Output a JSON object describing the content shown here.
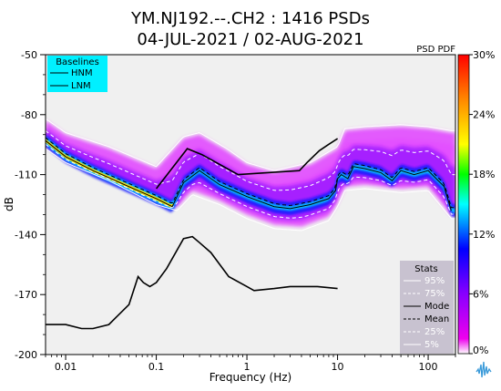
{
  "title_line1": "YM.NJ192.--.CH2 : 1416 PSDs",
  "title_line2": "04-JUL-2021 / 02-AUG-2021",
  "plot_type_label": "PSD PDF",
  "chart_data": {
    "type": "heatmap",
    "xlabel": "Frequency (Hz)",
    "ylabel": "dB",
    "x_scale": "log",
    "xlim": [
      0.006,
      200
    ],
    "ylim": [
      -200,
      -50
    ],
    "x_ticks": [
      0.01,
      0.1,
      1,
      10,
      100
    ],
    "x_tick_labels": [
      "0.01",
      "0.1",
      "1",
      "10",
      "100"
    ],
    "y_ticks": [
      -200,
      -170,
      -140,
      -110,
      -80,
      -50
    ],
    "y_tick_labels": [
      "-200",
      "-170",
      "-140",
      "-110",
      "-80",
      "-50"
    ],
    "colorbar": {
      "ticks": [
        0,
        6,
        12,
        18,
        24,
        30
      ],
      "tick_labels": [
        "0%",
        "6%",
        "12%",
        "18%",
        "24%",
        "30%"
      ],
      "range": [
        0,
        30
      ],
      "colors": [
        "#ffffff",
        "#ee00ee",
        "#8800ff",
        "#0000ff",
        "#00ffff",
        "#00ff00",
        "#ffff00",
        "#ff8800",
        "#ff0000"
      ]
    },
    "baselines": {
      "title": "Baselines",
      "entries": [
        "HNM",
        "LNM"
      ],
      "HNM": {
        "x": [
          0.1,
          0.22,
          0.32,
          0.8,
          3.8,
          4.6,
          6.3,
          7.9,
          10
        ],
        "y": [
          -117,
          -97,
          -100,
          -110,
          -108,
          -104,
          -98,
          -95,
          -92
        ]
      },
      "LNM": {
        "x": [
          0.006,
          0.01,
          0.015,
          0.02,
          0.03,
          0.05,
          0.063,
          0.072,
          0.085,
          0.1,
          0.13,
          0.2,
          0.25,
          0.3,
          0.4,
          0.63,
          1,
          1.2,
          2,
          3,
          5,
          6,
          10
        ],
        "y": [
          -185,
          -185,
          -187,
          -187,
          -185,
          -175,
          -161,
          -164,
          -166,
          -164,
          -157,
          -142,
          -141,
          -144,
          -149,
          -161,
          -166,
          -168,
          -167,
          -166,
          -166,
          -166,
          -167
        ]
      }
    },
    "stats": {
      "title": "Stats",
      "entries": [
        "95%",
        "75%",
        "Mode",
        "Mean",
        "25%",
        "5%"
      ]
    },
    "mode_curve": {
      "x": [
        0.006,
        0.01,
        0.02,
        0.05,
        0.1,
        0.15,
        0.2,
        0.3,
        0.5,
        1,
        2,
        3,
        5,
        8,
        9.5,
        10,
        11,
        13,
        15,
        20,
        30,
        40,
        50,
        70,
        100,
        150,
        180
      ],
      "y": [
        -93,
        -101,
        -108,
        -116,
        -122,
        -126,
        -114,
        -108,
        -115,
        -121,
        -126,
        -127,
        -125,
        -122,
        -118,
        -112,
        -110,
        -112,
        -106,
        -107,
        -109,
        -113,
        -108,
        -110,
        -108,
        -116,
        -128
      ]
    },
    "percentile_95": {
      "x": [
        0.006,
        0.01,
        0.03,
        0.1,
        0.2,
        0.3,
        0.6,
        1,
        2,
        5,
        10,
        12,
        20,
        50,
        100,
        180
      ],
      "y": [
        -82,
        -89,
        -96,
        -106,
        -91,
        -89,
        -97,
        -104,
        -108,
        -104,
        -96,
        -87,
        -86,
        -85,
        -86,
        -88
      ]
    },
    "percentile_5": {
      "x": [
        0.006,
        0.01,
        0.03,
        0.1,
        0.17,
        0.25,
        0.5,
        1,
        2,
        4,
        8,
        10,
        12,
        20,
        50,
        100,
        180
      ],
      "y": [
        -97,
        -104,
        -113,
        -125,
        -128,
        -120,
        -125,
        -132,
        -137,
        -138,
        -133,
        -126,
        -118,
        -117,
        -119,
        -118,
        -132
      ]
    }
  }
}
